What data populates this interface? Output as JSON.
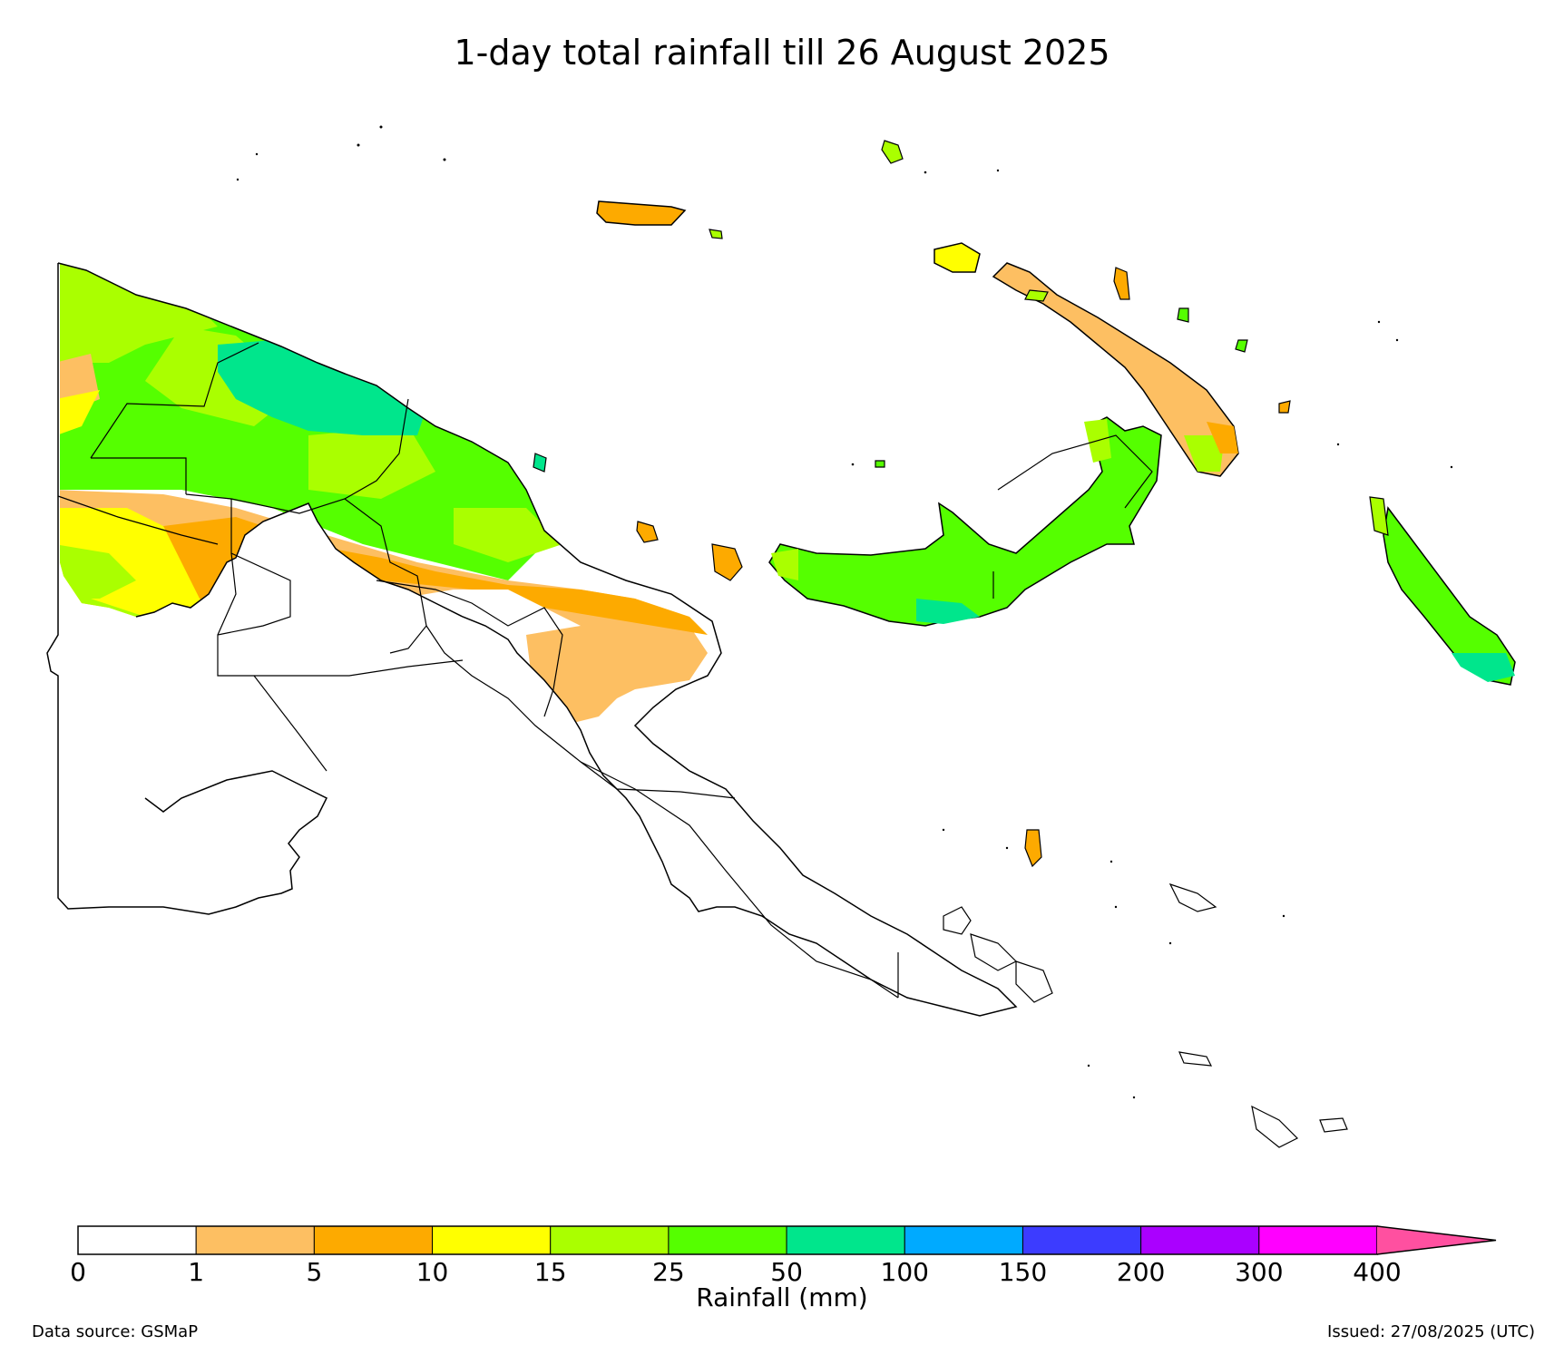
{
  "title": "1-day total rainfall till 26 August 2025",
  "colorbar": {
    "label": "Rainfall (mm)",
    "ticks": [
      "0",
      "1",
      "5",
      "10",
      "15",
      "25",
      "50",
      "100",
      "150",
      "200",
      "300",
      "400"
    ],
    "colors": [
      "#ffffff",
      "#fdbf62",
      "#fdaa00",
      "#ffff00",
      "#aaff00",
      "#55ff00",
      "#00e68c",
      "#00aaff",
      "#3c3cff",
      "#aa00ff",
      "#ff00ff",
      "#ff50a0"
    ],
    "extend": "max"
  },
  "legend_colors": {
    "c0": "#ffffff",
    "c1": "#fdbf62",
    "c5": "#fdaa00",
    "c10": "#ffff00",
    "c15": "#aaff00",
    "c25": "#55ff00",
    "c50": "#00e68c"
  },
  "footer": {
    "source": "Data source: GSMaP",
    "issued": "Issued: 27/08/2025 (UTC)"
  }
}
